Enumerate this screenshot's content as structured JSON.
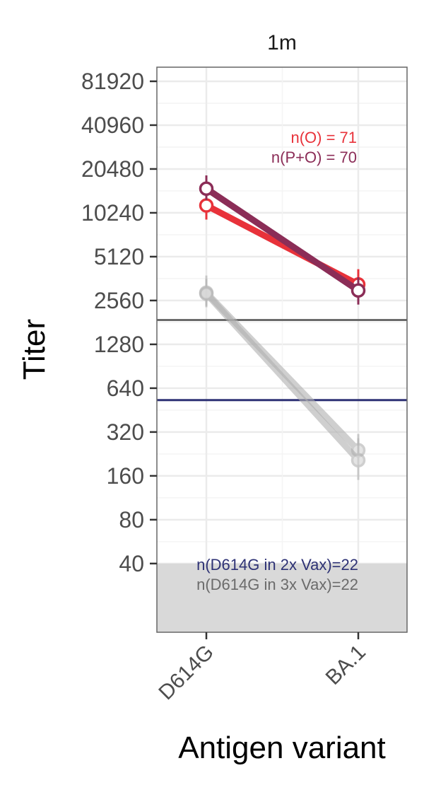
{
  "chart_data": {
    "type": "line",
    "facet_label": "1m",
    "xlabel": "Antigen variant",
    "ylabel": "Titer",
    "categories": [
      "D614G",
      "BA.1"
    ],
    "y_scale": "log2",
    "y_ticks": [
      40,
      80,
      160,
      320,
      640,
      1280,
      2560,
      5120,
      10240,
      20480,
      40960,
      81920
    ],
    "y_tick_labels": [
      "40",
      "80",
      "160",
      "320",
      "640",
      "1280",
      "2560",
      "5120",
      "10240",
      "20480",
      "40960",
      "81920"
    ],
    "ylim": [
      13.5,
      102400
    ],
    "grid": true,
    "lod_value": 40,
    "reference_lines": [
      {
        "name": "D614G in 3x Vax",
        "value": 1880,
        "color": "#6b6b6b"
      },
      {
        "name": "D614G in 2x Vax",
        "value": 530,
        "color": "#2e3275"
      }
    ],
    "series": [
      {
        "name": "O",
        "color": "#e8323a",
        "values": [
          11500,
          3300
        ],
        "error_low": [
          9200,
          2700
        ],
        "error_high": [
          14000,
          4200
        ]
      },
      {
        "name": "P+O",
        "color": "#8b2d57",
        "values": [
          15000,
          3000
        ],
        "error_low": [
          12500,
          2400
        ],
        "error_high": [
          18500,
          3700
        ]
      },
      {
        "name": "D614G in 3x Vax",
        "color": "#b0b0b0",
        "values": [
          2900,
          240
        ],
        "error_low": [
          2350,
          190
        ],
        "error_high": [
          3800,
          310
        ]
      },
      {
        "name": "D614G in 2x Vax",
        "color": "#b0b0b0",
        "values": [
          2850,
          205
        ],
        "error_low": [
          2300,
          150
        ],
        "error_high": [
          3600,
          290
        ]
      }
    ],
    "annotations": {
      "n_o": "n(O) = 71",
      "n_po": "n(P+O) = 70",
      "n_2x": "n(D614G in 2x Vax)=22",
      "n_3x": "n(D614G in 3x Vax)=22"
    },
    "colors": {
      "o": "#e8323a",
      "po": "#8b2d57",
      "line_3x": "#6b6b6b",
      "line_2x": "#2e3275",
      "lod_band": "#d9d9d9",
      "grey_points": "#b0b0b0"
    }
  }
}
